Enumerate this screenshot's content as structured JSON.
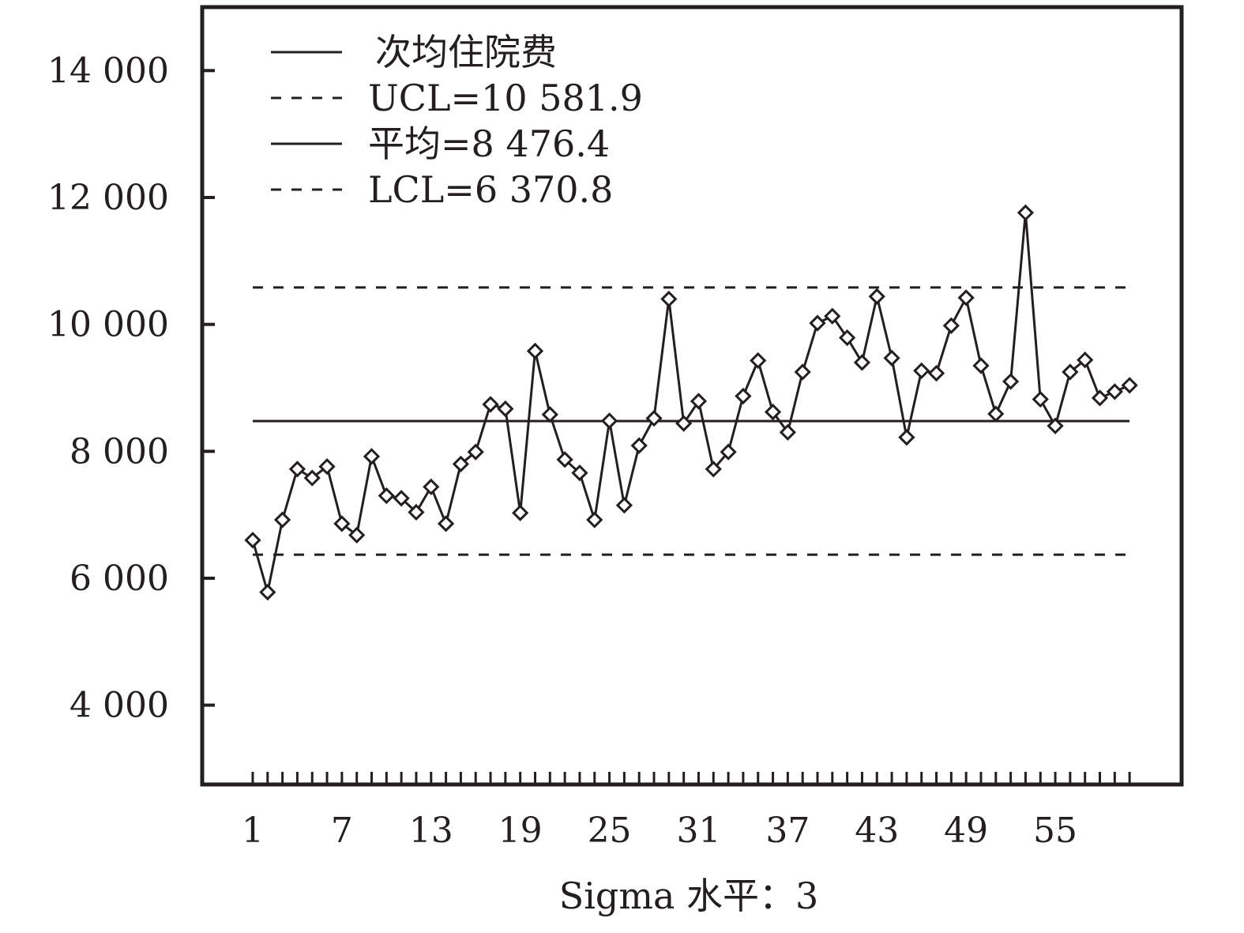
{
  "chart_data": {
    "type": "line",
    "title": "",
    "xlabel": "Sigma 水平：3",
    "ylabel": "",
    "x_ticks": [
      "1",
      "7",
      "13",
      "19",
      "25",
      "31",
      "37",
      "43",
      "49",
      "55"
    ],
    "y_ticks": [
      "4 000",
      "6 000",
      "8 000",
      "10 000",
      "12 000",
      "14 000"
    ],
    "ylim": [
      2750,
      15000
    ],
    "xlim": [
      -2.4,
      63.5
    ],
    "grid": false,
    "legend_position": "top-left",
    "legend": [
      {
        "label": "次均住院费",
        "style": "solid"
      },
      {
        "label": "UCL=10 581.9",
        "style": "dashed"
      },
      {
        "label": "平均=8 476.4",
        "style": "solid"
      },
      {
        "label": "LCL=6 370.8",
        "style": "dashed"
      }
    ],
    "control_limits": {
      "ucl": 10581.9,
      "mean": 8476.4,
      "lcl": 6370.8
    },
    "series": [
      {
        "name": "次均住院费",
        "marker": "diamond",
        "x": [
          1,
          2,
          3,
          4,
          5,
          6,
          7,
          8,
          9,
          10,
          11,
          12,
          13,
          14,
          15,
          16,
          17,
          18,
          19,
          20,
          21,
          22,
          23,
          24,
          25,
          26,
          27,
          28,
          29,
          30,
          31,
          32,
          33,
          34,
          35,
          36,
          37,
          38,
          39,
          40,
          41,
          42,
          43,
          44,
          45,
          46,
          47,
          48,
          49,
          50,
          51,
          52,
          53,
          54,
          55,
          56,
          57,
          58,
          59,
          60
        ],
        "values": [
          6600,
          5780,
          6920,
          7720,
          7580,
          7760,
          6860,
          6680,
          7920,
          7300,
          7260,
          7040,
          7440,
          6860,
          7800,
          7990,
          8740,
          8670,
          7030,
          9580,
          8580,
          7870,
          7660,
          6920,
          8480,
          7150,
          8090,
          8520,
          10400,
          8440,
          8790,
          7720,
          7990,
          8870,
          9430,
          8620,
          8300,
          9250,
          10020,
          10130,
          9790,
          9400,
          10440,
          9470,
          8220,
          9270,
          9230,
          9980,
          10420,
          9350,
          8590,
          9100,
          11760,
          8820,
          8400,
          9250,
          9440,
          8840,
          8940,
          9040
        ]
      }
    ]
  }
}
